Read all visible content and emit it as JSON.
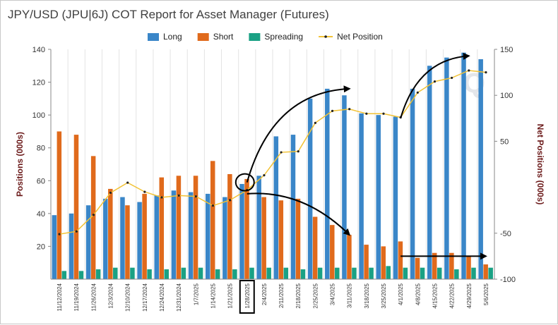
{
  "chart_data": {
    "type": "bar",
    "title": "JPY/USD (JPU|6J) COT Report for Asset Manager (Futures)",
    "ylabel": "Positions (000s)",
    "y2label": "Net Positions (000s)",
    "ylim": [
      0,
      140
    ],
    "y2lim": [
      -100,
      150
    ],
    "yticks": [
      20,
      40,
      60,
      80,
      100,
      120,
      140
    ],
    "y2ticks": [
      -100,
      -50,
      50,
      100,
      150
    ],
    "grid": "vertical",
    "legend_position": "top",
    "categories": [
      "11/12/2024",
      "11/19/2024",
      "11/26/2024",
      "12/3/2024",
      "12/10/2024",
      "12/17/2024",
      "12/24/2024",
      "12/31/2024",
      "1/7/2025",
      "1/14/2025",
      "1/21/2025",
      "1/28/2025",
      "2/4/2025",
      "2/11/2025",
      "2/18/2025",
      "2/25/2025",
      "3/4/2025",
      "3/11/2025",
      "3/18/2025",
      "3/25/2025",
      "4/1/2025",
      "4/8/2025",
      "4/15/2025",
      "4/22/2025",
      "4/29/2025",
      "5/6/2025"
    ],
    "highlighted_category": "1/28/2025",
    "series": [
      {
        "name": "Long",
        "type": "bar",
        "axis": "left",
        "color": "#3a86c8",
        "values": [
          39,
          40,
          45,
          49,
          50,
          47,
          51,
          54,
          53,
          52,
          50,
          58,
          63,
          87,
          88,
          110,
          116,
          112,
          101,
          100,
          99,
          116,
          130,
          135,
          138,
          134
        ]
      },
      {
        "name": "Short",
        "type": "bar",
        "axis": "left",
        "color": "#e06a1c",
        "values": [
          90,
          88,
          75,
          55,
          45,
          52,
          62,
          63,
          63,
          72,
          64,
          61,
          50,
          48,
          49,
          38,
          33,
          27,
          21,
          20,
          23,
          13,
          16,
          16,
          14,
          9
        ]
      },
      {
        "name": "Spreading",
        "type": "bar",
        "axis": "left",
        "color": "#1aa184",
        "values": [
          5,
          5,
          6,
          7,
          7,
          6,
          6,
          7,
          7,
          6,
          6,
          7,
          7,
          7,
          6,
          7,
          7,
          7,
          7,
          8,
          7,
          7,
          7,
          6,
          7,
          7
        ]
      },
      {
        "name": "Net Position",
        "type": "line",
        "axis": "right",
        "color": "#f2c234",
        "values": [
          -51,
          -48,
          -30,
          -6,
          5,
          -5,
          -11,
          -9,
          -10,
          -20,
          -14,
          -3,
          13,
          38,
          39,
          70,
          83,
          85,
          80,
          80,
          76,
          103,
          115,
          119,
          127,
          125
        ]
      }
    ],
    "colors": {
      "axis": "#888888",
      "grid": "#e3e3e3",
      "axis_label": "#6b1a1a",
      "annotation": "#000000"
    },
    "annotations": [
      {
        "type": "circle",
        "category": "1/28/2025",
        "value": 59
      },
      {
        "type": "box",
        "target": "x-tick",
        "category": "1/28/2025"
      },
      {
        "type": "arrow",
        "from": {
          "category": "1/28/2025",
          "value": 59
        },
        "to": {
          "category": "3/11/2025",
          "value": 116
        }
      },
      {
        "type": "arrow",
        "from": {
          "category": "4/1/2025",
          "value": 98
        },
        "to": {
          "category": "4/29/2025",
          "value": 136
        }
      },
      {
        "type": "arrow",
        "from": {
          "category": "1/28/2025",
          "value": 52
        },
        "to": {
          "category": "3/11/2025",
          "value": 27
        }
      },
      {
        "type": "arrow",
        "from": {
          "category": "4/1/2025",
          "value": 14
        },
        "to": {
          "category": "5/6/2025",
          "value": 14
        }
      }
    ]
  }
}
